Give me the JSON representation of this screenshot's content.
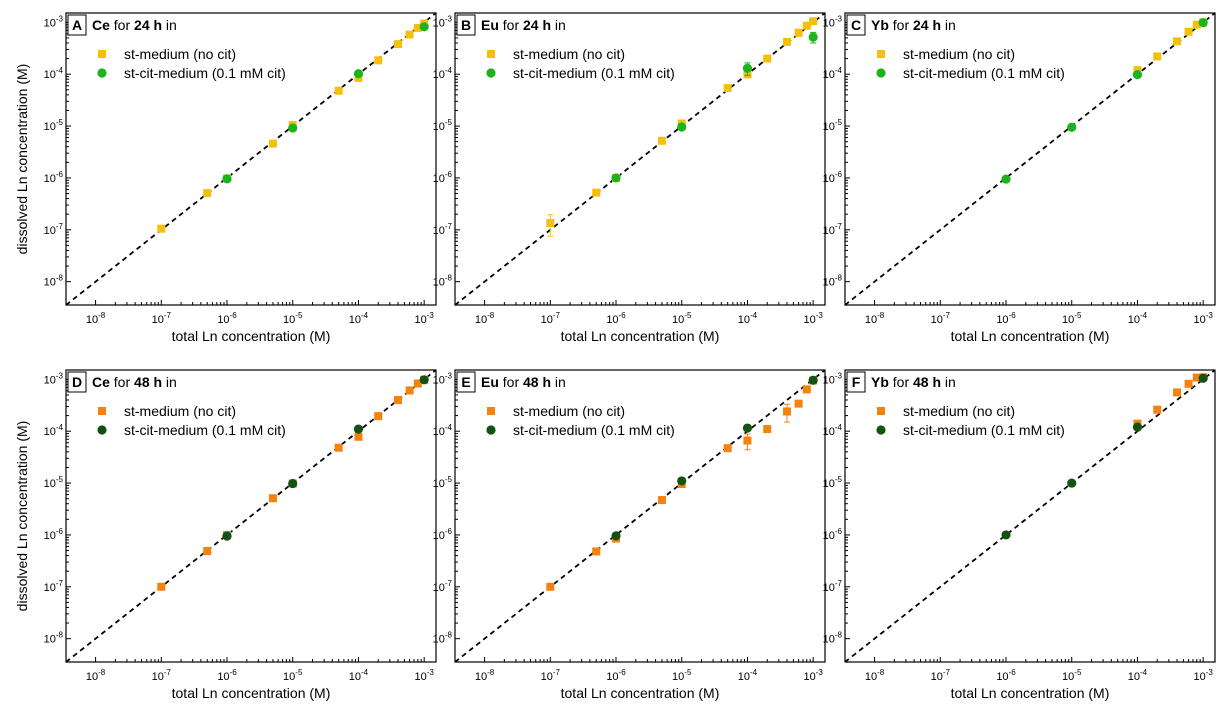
{
  "figure": {
    "axis_xlabel": "total Ln concentration (M)",
    "axis_ylabel": "dissolved Ln concentration (M)"
  },
  "chart_data": [
    {
      "type": "scatter",
      "panel": "A",
      "element": "Ce",
      "title_mid": "for",
      "duration": "24 h",
      "title_end": "in",
      "xscale": "log",
      "yscale": "log",
      "xlim": [
        1e-08,
        0.001
      ],
      "ylim": [
        1e-08,
        0.001
      ],
      "tick_base": "10",
      "tick_exps": [
        "-8",
        "-7",
        "-6",
        "-5",
        "-4",
        "-3"
      ],
      "reference_line": "y = x",
      "legend_position": "top-left",
      "series": [
        {
          "name": "st-medium (no cit)",
          "marker": "square",
          "color": "#F5C00D",
          "x": [
            1e-07,
            5e-07,
            1e-06,
            5e-06,
            1e-05,
            5e-05,
            0.0001,
            0.0002,
            0.0004,
            0.0006,
            0.0008,
            0.001
          ],
          "y": [
            1.05e-07,
            5.1e-07,
            9.8e-07,
            4.6e-06,
            1.05e-05,
            4.8e-05,
            8.5e-05,
            0.000185,
            0.00038,
            0.00058,
            0.00078,
            0.00095
          ],
          "y_err": [
            0,
            0,
            0,
            0,
            0,
            0,
            0,
            0,
            0,
            0,
            0,
            0
          ]
        },
        {
          "name": "st-cit-medium (0.1 mM cit)",
          "marker": "circle",
          "color": "#1DB31D",
          "x": [
            1e-06,
            1e-05,
            0.0001,
            0.001
          ],
          "y": [
            9.6e-07,
            9.2e-06,
            0.000102,
            0.00082
          ],
          "y_err": [
            0,
            0,
            0,
            0
          ]
        }
      ]
    },
    {
      "type": "scatter",
      "panel": "B",
      "element": "Eu",
      "title_mid": "for",
      "duration": "24 h",
      "title_end": "in",
      "xscale": "log",
      "yscale": "log",
      "xlim": [
        1e-08,
        0.001
      ],
      "ylim": [
        1e-08,
        0.001
      ],
      "tick_base": "10",
      "tick_exps": [
        "-8",
        "-7",
        "-6",
        "-5",
        "-4",
        "-3"
      ],
      "reference_line": "y = x",
      "legend_position": "top-left",
      "series": [
        {
          "name": "st-medium (no cit)",
          "marker": "square",
          "color": "#F5C00D",
          "x": [
            1e-07,
            5e-07,
            1e-06,
            5e-06,
            1e-05,
            5e-05,
            0.0001,
            0.0002,
            0.0004,
            0.0006,
            0.0008,
            0.001
          ],
          "y": [
            1.35e-07,
            5.2e-07,
            1e-06,
            5.2e-06,
            1.12e-05,
            5.4e-05,
            0.0001,
            0.0002,
            0.00042,
            0.00063,
            0.00086,
            0.00105
          ],
          "y_err": [
            6e-08,
            0,
            0,
            0,
            0,
            0,
            1.5e-05,
            0,
            0,
            0,
            0,
            0
          ]
        },
        {
          "name": "st-cit-medium (0.1 mM cit)",
          "marker": "circle",
          "color": "#1DB31D",
          "x": [
            1e-06,
            1e-05,
            0.0001,
            0.001
          ],
          "y": [
            1e-06,
            9.6e-06,
            0.00013,
            0.00052
          ],
          "y_err": [
            0,
            0,
            3.5e-05,
            0.00012
          ]
        }
      ]
    },
    {
      "type": "scatter",
      "panel": "C",
      "element": "Yb",
      "title_mid": "for",
      "duration": "24 h",
      "title_end": "in",
      "xscale": "log",
      "yscale": "log",
      "xlim": [
        1e-08,
        0.001
      ],
      "ylim": [
        1e-08,
        0.001
      ],
      "tick_base": "10",
      "tick_exps": [
        "-8",
        "-7",
        "-6",
        "-5",
        "-4",
        "-3"
      ],
      "reference_line": "y = x",
      "legend_position": "top-left",
      "series": [
        {
          "name": "st-medium (no cit)",
          "marker": "square",
          "color": "#F5C00D",
          "x": [
            0.0001,
            0.0002,
            0.0004,
            0.0006,
            0.0008,
            0.001
          ],
          "y": [
            0.00012,
            0.00022,
            0.00043,
            0.00066,
            0.0009,
            0.001
          ],
          "y_err": [
            0,
            0,
            0,
            0,
            0,
            0
          ]
        },
        {
          "name": "st-cit-medium (0.1 mM cit)",
          "marker": "circle",
          "color": "#1DB31D",
          "x": [
            1e-06,
            1e-05,
            0.0001,
            0.001
          ],
          "y": [
            9.5e-07,
            9.5e-06,
            9.8e-05,
            0.00099
          ],
          "y_err": [
            0,
            0,
            0,
            0
          ]
        }
      ]
    },
    {
      "type": "scatter",
      "panel": "D",
      "element": "Ce",
      "title_mid": "for",
      "duration": "48 h",
      "title_end": "in",
      "xscale": "log",
      "yscale": "log",
      "xlim": [
        1e-08,
        0.001
      ],
      "ylim": [
        1e-08,
        0.001
      ],
      "tick_base": "10",
      "tick_exps": [
        "-8",
        "-7",
        "-6",
        "-5",
        "-4",
        "-3"
      ],
      "reference_line": "y = x",
      "legend_position": "top-left",
      "series": [
        {
          "name": "st-medium (no cit)",
          "marker": "square",
          "color": "#F5820D",
          "x": [
            1e-07,
            5e-07,
            1e-06,
            5e-06,
            1e-05,
            5e-05,
            0.0001,
            0.0002,
            0.0004,
            0.0006,
            0.0008,
            0.001
          ],
          "y": [
            1e-07,
            4.9e-07,
            1e-06,
            5.1e-06,
            9.8e-06,
            4.8e-05,
            7.8e-05,
            0.000195,
            0.0004,
            0.00061,
            0.00083,
            0.00098
          ],
          "y_err": [
            0,
            0,
            0,
            0,
            0,
            0,
            0,
            0,
            0,
            0,
            0,
            0
          ]
        },
        {
          "name": "st-cit-medium (0.1 mM cit)",
          "marker": "circle",
          "color": "#145214",
          "x": [
            1e-06,
            1e-05,
            0.0001,
            0.001
          ],
          "y": [
            9.5e-07,
            9.8e-06,
            0.00011,
            0.00098
          ],
          "y_err": [
            0,
            0,
            0,
            0
          ]
        }
      ]
    },
    {
      "type": "scatter",
      "panel": "E",
      "element": "Eu",
      "title_mid": "for",
      "duration": "48 h",
      "title_end": "in",
      "xscale": "log",
      "yscale": "log",
      "xlim": [
        1e-08,
        0.001
      ],
      "ylim": [
        1e-08,
        0.001
      ],
      "tick_base": "10",
      "tick_exps": [
        "-8",
        "-7",
        "-6",
        "-5",
        "-4",
        "-3"
      ],
      "reference_line": "y = x",
      "legend_position": "top-left",
      "series": [
        {
          "name": "st-medium (no cit)",
          "marker": "square",
          "color": "#F5820D",
          "x": [
            1e-07,
            5e-07,
            1e-06,
            5e-06,
            1e-05,
            5e-05,
            0.0001,
            0.0002,
            0.0004,
            0.0006,
            0.0008,
            0.001
          ],
          "y": [
            1e-07,
            4.8e-07,
            8.5e-07,
            4.7e-06,
            9.6e-06,
            4.7e-05,
            6.6e-05,
            0.00011,
            0.00024,
            0.00034,
            0.00064,
            0.00095
          ],
          "y_err": [
            0,
            0,
            0,
            0,
            0,
            0,
            2.2e-05,
            0,
            9e-05,
            0,
            0,
            0
          ]
        },
        {
          "name": "st-cit-medium (0.1 mM cit)",
          "marker": "circle",
          "color": "#145214",
          "x": [
            1e-06,
            1e-05,
            0.0001,
            0.001
          ],
          "y": [
            9.6e-07,
            1.1e-05,
            0.000115,
            0.00096
          ],
          "y_err": [
            0,
            0,
            0,
            0
          ]
        }
      ]
    },
    {
      "type": "scatter",
      "panel": "F",
      "element": "Yb",
      "title_mid": "for",
      "duration": "48 h",
      "title_end": "in",
      "xscale": "log",
      "yscale": "log",
      "xlim": [
        1e-08,
        0.001
      ],
      "ylim": [
        1e-08,
        0.001
      ],
      "tick_base": "10",
      "tick_exps": [
        "-8",
        "-7",
        "-6",
        "-5",
        "-4",
        "-3"
      ],
      "reference_line": "y = x",
      "legend_position": "top-left",
      "series": [
        {
          "name": "st-medium (no cit)",
          "marker": "square",
          "color": "#F5820D",
          "x": [
            0.0001,
            0.0002,
            0.0004,
            0.0006,
            0.0008,
            0.001
          ],
          "y": [
            0.00014,
            0.00026,
            0.00056,
            0.00082,
            0.00108,
            0.0011
          ],
          "y_err": [
            0,
            0,
            0,
            0,
            0,
            0
          ]
        },
        {
          "name": "st-cit-medium (0.1 mM cit)",
          "marker": "circle",
          "color": "#145214",
          "x": [
            1e-06,
            1e-05,
            0.0001,
            0.001
          ],
          "y": [
            1e-06,
            1e-05,
            0.00012,
            0.00105
          ],
          "y_err": [
            0,
            0,
            0,
            0
          ]
        }
      ]
    }
  ]
}
